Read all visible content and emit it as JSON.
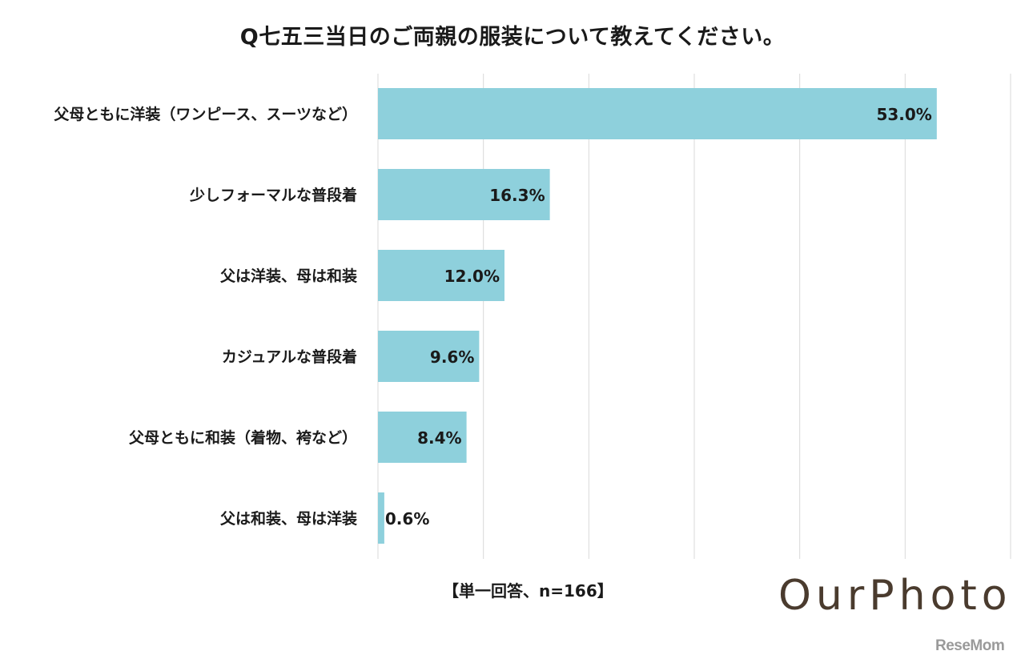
{
  "chart_data": {
    "type": "bar",
    "orientation": "horizontal",
    "title": "Q七五三当日のご両親の服装について教えてください。",
    "categories": [
      "父母ともに洋装（ワンピース、スーツなど）",
      "少しフォーマルな普段着",
      "父は洋装、母は和装",
      "カジュアルな普段着",
      "父母ともに和装（着物、袴など）",
      "父は和装、母は洋装"
    ],
    "values": [
      53.0,
      16.3,
      12.0,
      9.6,
      8.4,
      0.6
    ],
    "value_labels": [
      "53.0%",
      "16.3%",
      "12.0%",
      "9.6%",
      "8.4%",
      "0.6%"
    ],
    "xlim": [
      0,
      60
    ],
    "grid": true,
    "bar_color": "#8ed0dc",
    "note": "【単一回答、n=166】"
  },
  "branding": {
    "logo": "OurPhoto",
    "watermark": "ReseMom"
  }
}
